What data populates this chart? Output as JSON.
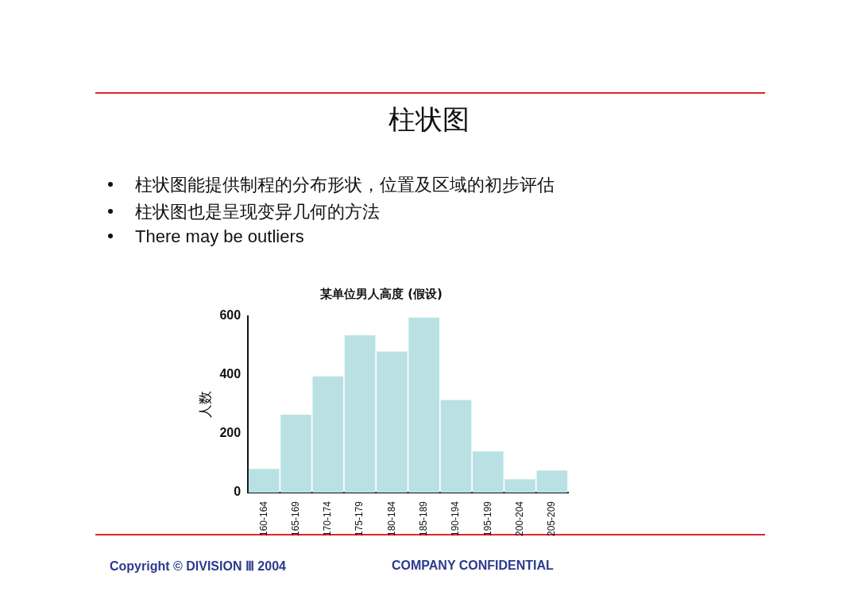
{
  "chart_data": {
    "type": "bar",
    "title": "某单位男人高度 (假设)",
    "ylabel": "人数",
    "categories": [
      "160-164",
      "165-169",
      "170-174",
      "175-179",
      "180-184",
      "185-189",
      "190-194",
      "195-199",
      "200-204",
      "205-209"
    ],
    "values": [
      80,
      265,
      395,
      535,
      480,
      595,
      315,
      140,
      45,
      75
    ],
    "color": "#b9e1e3",
    "ylim": [
      0,
      600
    ],
    "yticks": [
      0,
      200,
      400,
      600
    ],
    "annotations": [
      "柱状图",
      "柱状图能提供制程的分布形状，位置及区域的初步评估",
      "柱状图也是呈现变异几何的方法",
      "There may be outliers",
      "Copyright © DIVISION Ⅲ 2004",
      "COMPANY CONFIDENTIAL"
    ]
  }
}
